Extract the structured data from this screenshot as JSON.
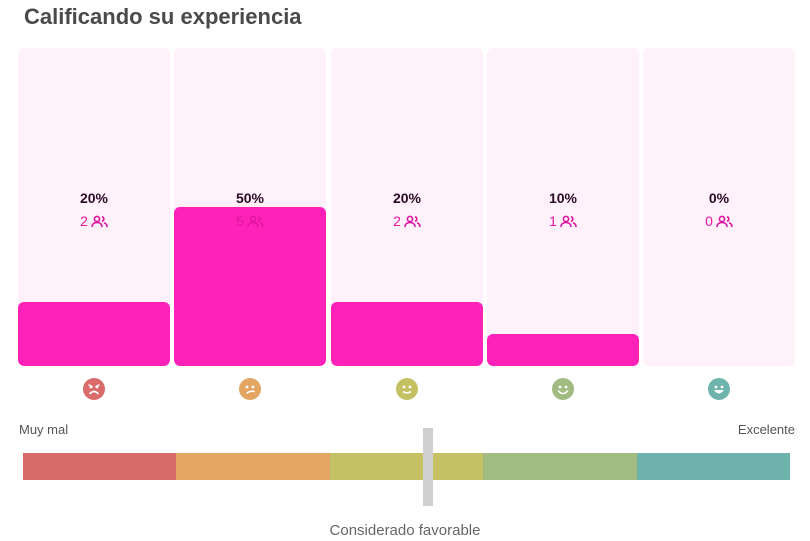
{
  "title": "Calificando su experiencia",
  "chart_data": {
    "type": "bar",
    "categories": [
      "Muy mal",
      "Mal",
      "Regular",
      "Bien",
      "Excelente"
    ],
    "values": [
      20,
      50,
      20,
      10,
      0
    ],
    "percent_labels": [
      "20%",
      "50%",
      "20%",
      "10%",
      "0%"
    ],
    "counts": [
      "2",
      "5",
      "2",
      "1",
      "0"
    ],
    "ylim": [
      0,
      100
    ],
    "icons": [
      "sad-face-icon",
      "confused-face-icon",
      "neutral-face-icon",
      "smiling-face-icon",
      "laughing-face-icon"
    ],
    "colors": [
      "#d96b6b",
      "#e2a562",
      "#c4c064",
      "#a1bb80",
      "#6fb4ac"
    ]
  },
  "scale": {
    "left_label": "Muy mal",
    "right_label": "Excelente",
    "marker_label": "Considerado favorable"
  }
}
